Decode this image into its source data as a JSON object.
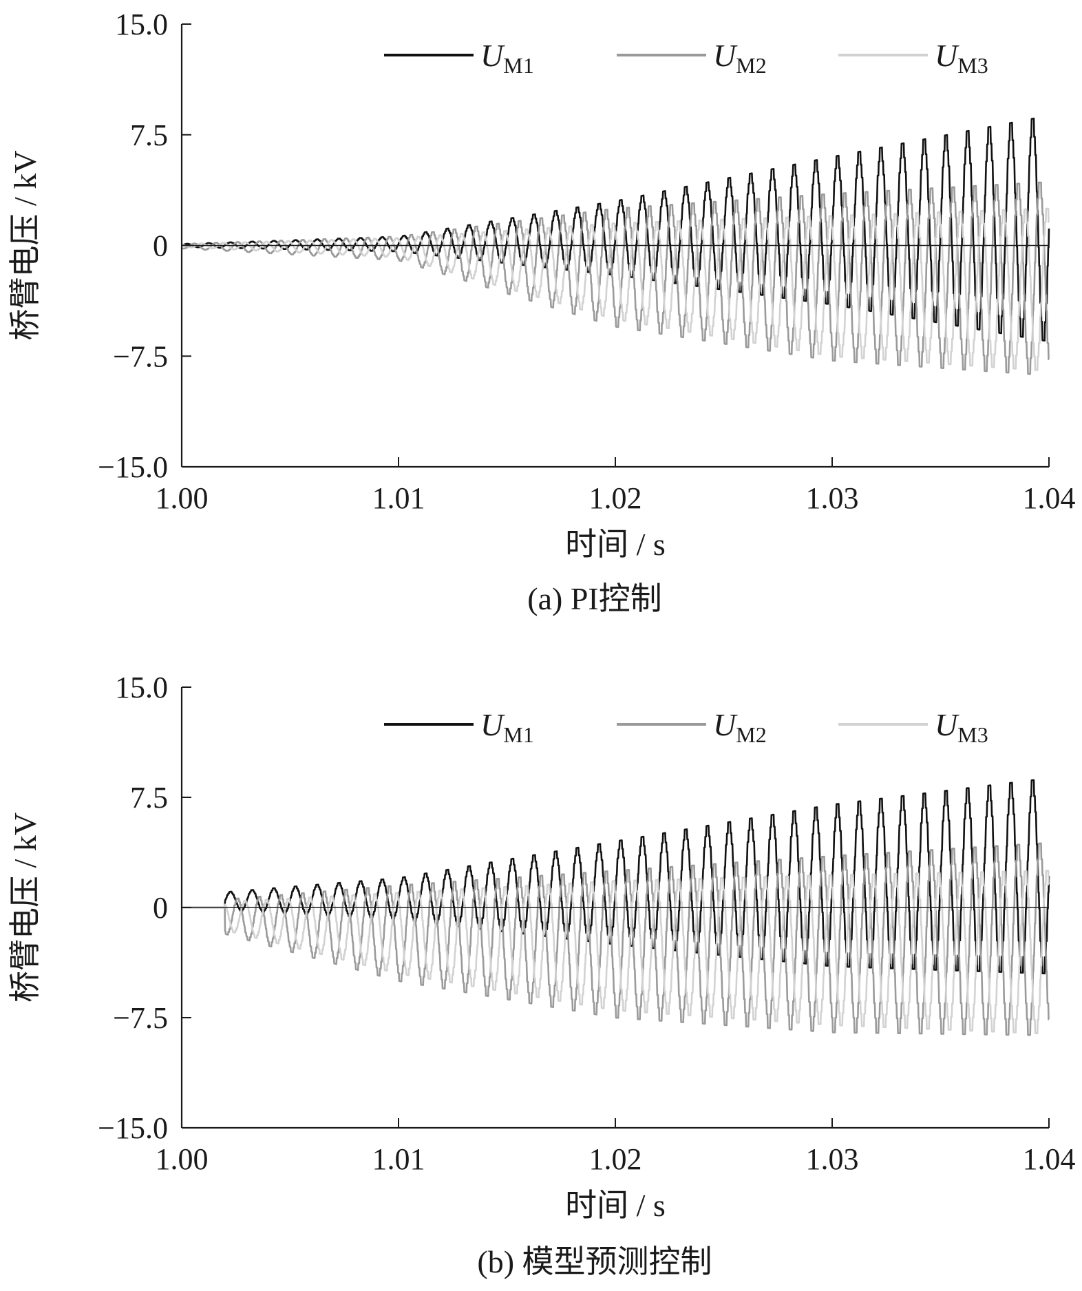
{
  "chart_data": [
    {
      "type": "line",
      "caption": "(a)  PI控制",
      "xlabel": "时间 / s",
      "ylabel": "桥臂电压 / kV",
      "xlim": [
        1.0,
        1.04
      ],
      "ylim": [
        -15.0,
        15.0
      ],
      "x_ticks": [
        "1.00",
        "1.01",
        "1.02",
        "1.03",
        "1.04"
      ],
      "y_ticks": [
        "15.0",
        "7.5",
        "0",
        "−7.5",
        "−15.0"
      ],
      "grid": false,
      "legend_position": "top",
      "legend": [
        {
          "symbol": "U",
          "subscript": "M1",
          "color": "#111111"
        },
        {
          "symbol": "U",
          "subscript": "M2",
          "color": "#9a9a9a"
        },
        {
          "symbol": "U",
          "subscript": "M3",
          "color": "#d2d2d2"
        }
      ],
      "series": [
        {
          "legend": "UM1",
          "color": "#111111",
          "frequency_khz": 1.0,
          "phase_deg": 0,
          "envelope": {
            "t": [
              1.0,
              1.01,
              1.02,
              1.03,
              1.04
            ],
            "peak_kV": [
              0.1,
              0.6,
              3.0,
              6.0,
              8.8
            ],
            "trough_kV": [
              -0.1,
              -0.4,
              -2.0,
              -4.0,
              -6.5
            ]
          }
        },
        {
          "legend": "UM2",
          "color": "#9a9a9a",
          "frequency_khz": 1.0,
          "phase_deg": 120,
          "envelope": {
            "t": [
              1.0,
              1.01,
              1.02,
              1.03,
              1.04
            ],
            "peak_kV": [
              0.1,
              0.6,
              2.5,
              3.5,
              4.3
            ],
            "trough_kV": [
              -0.2,
              -1.0,
              -5.5,
              -7.8,
              -8.8
            ]
          }
        },
        {
          "legend": "UM3",
          "color": "#d2d2d2",
          "frequency_khz": 1.0,
          "phase_deg": 240,
          "envelope": {
            "t": [
              1.0,
              1.01,
              1.02,
              1.03,
              1.04
            ],
            "peak_kV": [
              0.1,
              0.5,
              1.5,
              2.0,
              2.5
            ],
            "trough_kV": [
              -0.1,
              -0.8,
              -5.0,
              -7.5,
              -8.5
            ]
          }
        }
      ]
    },
    {
      "type": "line",
      "caption": "(b)  模型预测控制",
      "xlabel": "时间 / s",
      "ylabel": "桥臂电压 / kV",
      "xlim": [
        1.0,
        1.04
      ],
      "ylim": [
        -15.0,
        15.0
      ],
      "x_ticks": [
        "1.00",
        "1.01",
        "1.02",
        "1.03",
        "1.04"
      ],
      "y_ticks": [
        "15.0",
        "7.5",
        "0",
        "−7.5",
        "−15.0"
      ],
      "grid": false,
      "legend_position": "top",
      "legend": [
        {
          "symbol": "U",
          "subscript": "M1",
          "color": "#111111"
        },
        {
          "symbol": "U",
          "subscript": "M2",
          "color": "#9a9a9a"
        },
        {
          "symbol": "U",
          "subscript": "M3",
          "color": "#d2d2d2"
        }
      ],
      "series": [
        {
          "legend": "UM1",
          "color": "#111111",
          "frequency_khz": 1.0,
          "phase_deg": 0,
          "starts_at": 1.002,
          "envelope": {
            "t": [
              1.0,
              1.01,
              1.02,
              1.03,
              1.04
            ],
            "peak_kV": [
              0.8,
              2.0,
              4.5,
              7.0,
              8.8
            ],
            "trough_kV": [
              0.0,
              -0.8,
              -2.5,
              -4.0,
              -4.5
            ]
          }
        },
        {
          "legend": "UM2",
          "color": "#9a9a9a",
          "frequency_khz": 1.0,
          "phase_deg": 120,
          "starts_at": 1.002,
          "envelope": {
            "t": [
              1.0,
              1.01,
              1.02,
              1.03,
              1.04
            ],
            "peak_kV": [
              0.3,
              1.5,
              2.5,
              3.5,
              4.4
            ],
            "trough_kV": [
              -1.0,
              -5.0,
              -7.5,
              -8.5,
              -8.7
            ]
          }
        },
        {
          "legend": "UM3",
          "color": "#d2d2d2",
          "frequency_khz": 1.0,
          "phase_deg": 240,
          "starts_at": 1.002,
          "envelope": {
            "t": [
              1.0,
              1.01,
              1.02,
              1.03,
              1.04
            ],
            "peak_kV": [
              0.2,
              1.0,
              1.8,
              2.2,
              2.5
            ],
            "trough_kV": [
              -0.8,
              -4.5,
              -7.0,
              -8.0,
              -8.6
            ]
          }
        }
      ]
    }
  ]
}
